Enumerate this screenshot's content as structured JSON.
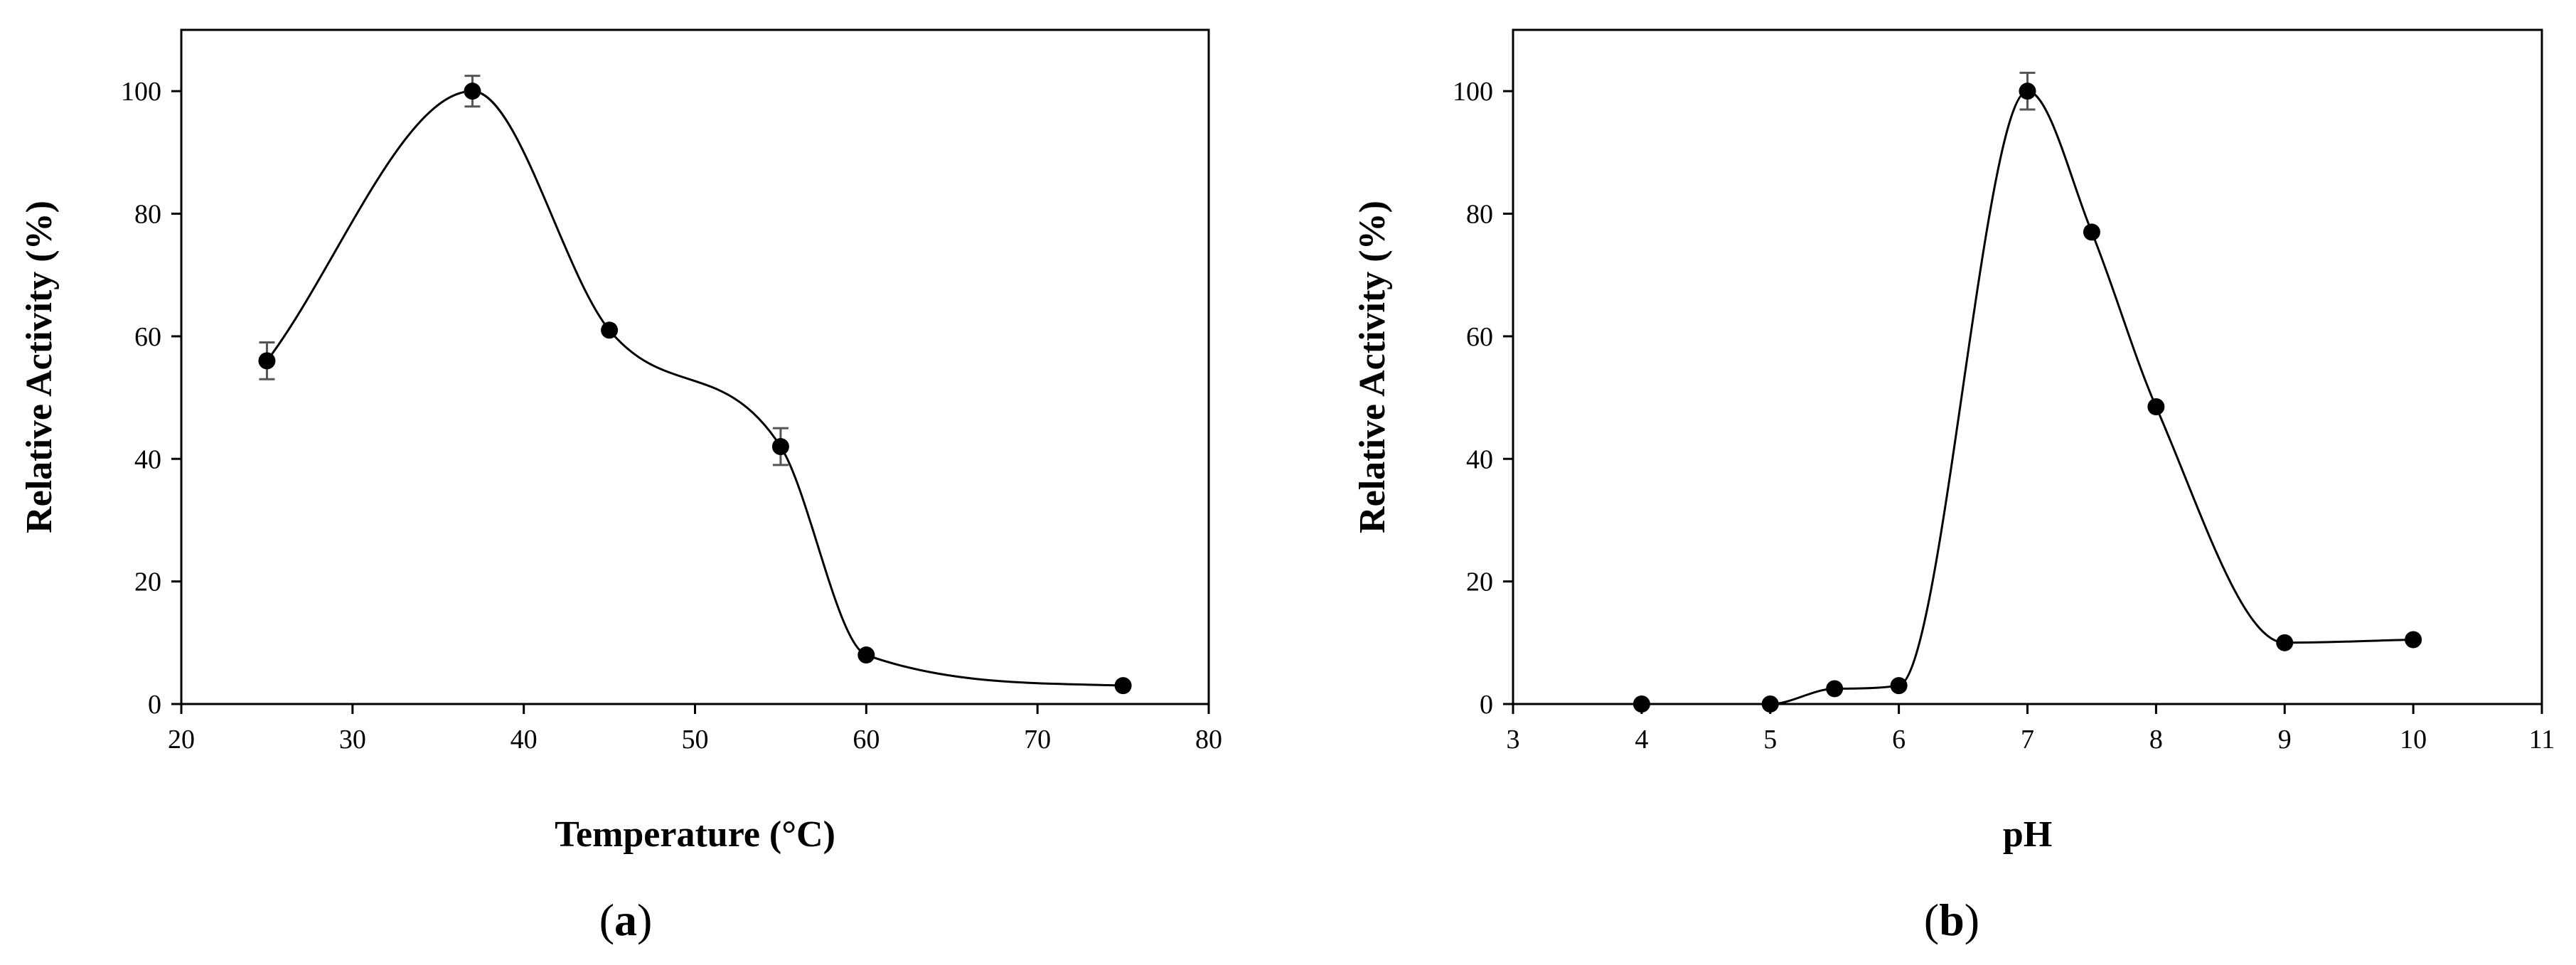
{
  "chart_data": [
    {
      "type": "scatter",
      "panel_label": "a",
      "title": "",
      "xlabel": "Temperature (°C)",
      "ylabel": "Relative Activity  (%)",
      "xlim": [
        20,
        80
      ],
      "ylim": [
        0,
        110
      ],
      "xticks": [
        20,
        30,
        40,
        50,
        60,
        70,
        80
      ],
      "yticks": [
        0,
        20,
        40,
        60,
        80,
        100
      ],
      "grid": false,
      "legend": "none",
      "marker_color": "#000000",
      "line": "smoothed",
      "series": [
        {
          "x": [
            25,
            37,
            45,
            55,
            60,
            75
          ],
          "y": [
            56,
            100,
            61,
            42,
            8,
            3
          ],
          "error": [
            3,
            2.5,
            0,
            3,
            0,
            0
          ]
        }
      ]
    },
    {
      "type": "scatter",
      "panel_label": "b",
      "title": "",
      "xlabel": "pH",
      "ylabel": "Relative Activity  (%)",
      "xlim": [
        3,
        11
      ],
      "ylim": [
        0,
        110
      ],
      "xticks": [
        3,
        4,
        5,
        6,
        7,
        8,
        9,
        10,
        11
      ],
      "yticks": [
        0,
        20,
        40,
        60,
        80,
        100
      ],
      "grid": false,
      "legend": "none",
      "marker_color": "#000000",
      "line": "smoothed",
      "series": [
        {
          "x": [
            4,
            5,
            5.5,
            6,
            7,
            7.5,
            8,
            9,
            10
          ],
          "y": [
            0,
            0,
            2.5,
            3,
            100,
            77,
            48.5,
            10,
            10.5
          ],
          "error": [
            0,
            0,
            0,
            0,
            3,
            0,
            0,
            0,
            0
          ]
        }
      ]
    }
  ]
}
